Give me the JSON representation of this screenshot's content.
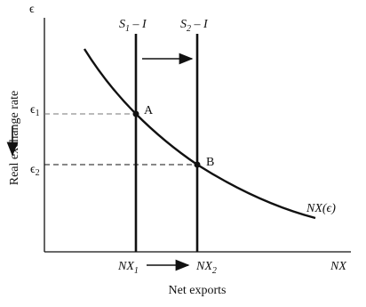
{
  "axes": {
    "y_symbol": "ϵ",
    "y_title": "Real exchange rate",
    "x_symbol": "NX",
    "x_title": "Net exports"
  },
  "levels": [
    {
      "symbol": "ϵ",
      "sub": "1"
    },
    {
      "symbol": "ϵ",
      "sub": "2"
    }
  ],
  "supply_lines": [
    {
      "symbol": "S",
      "sub": "1",
      "rest": " – I"
    },
    {
      "symbol": "S",
      "sub": "2",
      "rest": " – I"
    }
  ],
  "points": [
    "A",
    "B"
  ],
  "curve_label": "NX(ϵ)",
  "nx_values": [
    {
      "symbol": "NX",
      "sub": "1"
    },
    {
      "symbol": "NX",
      "sub": "2"
    }
  ]
}
